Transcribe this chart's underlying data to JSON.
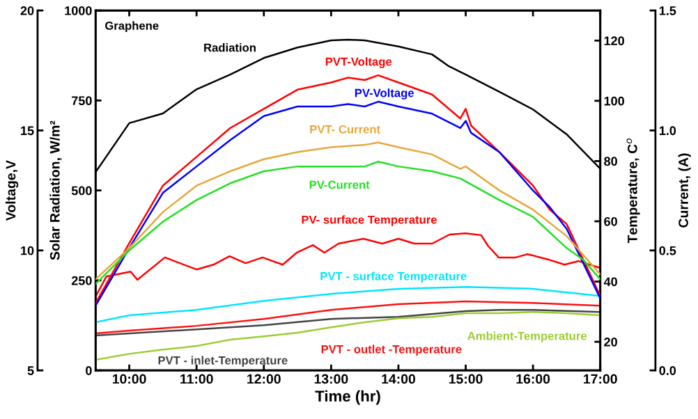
{
  "chart_data": [
    {
      "type": "line",
      "xlabel": "Time (hr)",
      "ylabel": "Solar Radiation, W/m²",
      "y2label": "Temperature, C$^{o}$",
      "annotations": [
        "Graphene"
      ],
      "xlim": [
        9.5,
        17
      ],
      "xticks": [
        {
          "value": 10,
          "label": "10:00"
        },
        {
          "value": 11,
          "label": "11:00"
        },
        {
          "value": 12,
          "label": "12:00"
        },
        {
          "value": 13,
          "label": "13:00"
        },
        {
          "value": 14,
          "label": "14:00"
        },
        {
          "value": 15,
          "label": "15:00"
        },
        {
          "value": 16,
          "label": "16:00"
        },
        {
          "value": 17,
          "label": "17:00"
        }
      ],
      "ylim": [
        0,
        1000
      ],
      "yticks": [
        0,
        250,
        500,
        750,
        1000
      ],
      "y2lim": [
        10.5,
        130
      ],
      "y2ticks": [
        20,
        40,
        60,
        80,
        100,
        120
      ],
      "line_style": "solid",
      "marker": "none",
      "series": [
        {
          "name": "Radiation",
          "color": "#000000",
          "x": [
            9.5,
            10.0,
            10.5,
            11.0,
            11.5,
            12.0,
            12.5,
            13.0,
            13.25,
            13.5,
            14.0,
            14.5,
            14.75,
            15.0,
            15.5,
            16.0,
            16.5,
            17.0
          ],
          "values": [
            551,
            687,
            714,
            781,
            822,
            868,
            897,
            917,
            919,
            917,
            900,
            878,
            845,
            822,
            774,
            725,
            656,
            560
          ]
        },
        {
          "name": "PV- surface Temperature",
          "color": "#ff0000",
          "axis": "y2",
          "x": [
            9.5,
            9.66,
            10.02,
            10.12,
            10.53,
            11.0,
            11.25,
            11.49,
            11.73,
            11.98,
            12.28,
            12.49,
            12.73,
            12.9,
            13.11,
            13.48,
            13.76,
            14.0,
            14.24,
            14.5,
            14.76,
            15.0,
            15.23,
            15.33,
            15.49,
            15.74,
            15.92,
            16.23,
            16.47,
            16.68,
            17.0
          ],
          "values": [
            35.0,
            41.7,
            43.3,
            40.6,
            48.0,
            44.0,
            45.6,
            48.4,
            46.1,
            48.0,
            45.6,
            49.6,
            52.1,
            49.6,
            52.6,
            54.2,
            52.6,
            54.2,
            52.6,
            52.6,
            55.6,
            56.0,
            55.4,
            51.9,
            48.0,
            48.0,
            49.1,
            47.3,
            45.6,
            46.8,
            44.5
          ]
        },
        {
          "name": "PVT - surface Temperature",
          "color": "#00e5ff",
          "axis": "y2",
          "x": [
            9.5,
            10.0,
            11.0,
            12.0,
            13.0,
            14.0,
            15.0,
            16.0,
            17.0
          ],
          "values": [
            26.5,
            28.8,
            30.6,
            33.6,
            35.9,
            37.6,
            38.2,
            37.6,
            35.2
          ]
        },
        {
          "name": "PVT - outlet -Temperature",
          "color": "#ff1010",
          "axis": "y2",
          "x": [
            9.5,
            10.0,
            11.0,
            12.0,
            13.0,
            14.0,
            15.0,
            16.0,
            17.0
          ],
          "values": [
            22.8,
            23.7,
            25.3,
            27.6,
            30.6,
            32.5,
            33.4,
            32.9,
            32.0
          ]
        },
        {
          "name": "PVT - inlet-Temperature",
          "color": "#444444",
          "axis": "y2",
          "x": [
            9.5,
            10.0,
            11.0,
            12.0,
            13.0,
            14.0,
            15.0,
            15.5,
            16.0,
            17.0
          ],
          "values": [
            22.1,
            22.8,
            24.1,
            25.5,
            27.6,
            28.3,
            30.2,
            30.6,
            30.6,
            29.9
          ]
        },
        {
          "name": "Ambient-Temperature",
          "color": "#9acd32",
          "axis": "y2",
          "x": [
            9.5,
            10.0,
            10.5,
            11.0,
            11.5,
            12.0,
            12.5,
            13.0,
            13.5,
            14.0,
            14.5,
            15.0,
            15.5,
            16.0,
            16.5,
            17.0
          ],
          "values": [
            14.0,
            16.0,
            17.4,
            18.6,
            20.7,
            21.8,
            23.0,
            24.8,
            26.5,
            27.8,
            28.3,
            29.5,
            29.5,
            29.9,
            29.5,
            28.8
          ]
        }
      ]
    },
    {
      "type": "line",
      "ylabel": "Voltage,V",
      "y2label": "Current, (A)",
      "tick_labels": "y",
      "xlim": [
        9.5,
        17
      ],
      "ylim": [
        5,
        20
      ],
      "yticks": [
        5,
        10,
        15,
        20
      ],
      "y2lim": [
        0,
        1.5
      ],
      "y2ticks": [
        {
          "value": 0,
          "label": "0.0"
        },
        {
          "value": 0.5,
          "label": "0.5"
        },
        {
          "value": 1,
          "label": "1.0"
        },
        {
          "value": 1.5,
          "label": "1.5"
        }
      ],
      "line_style": "solid",
      "marker": "none",
      "series": [
        {
          "name": "PVT-Voltage",
          "color": "#ff0000",
          "x": [
            9.5,
            10.0,
            10.5,
            11.0,
            11.5,
            12.0,
            12.5,
            13.0,
            13.25,
            13.5,
            13.7,
            14.0,
            14.5,
            14.92,
            15.0,
            15.08,
            15.5,
            16.0,
            16.25,
            16.5,
            16.75,
            17.0
          ],
          "values": [
            7.8,
            10.3,
            12.7,
            13.9,
            15.1,
            15.9,
            16.7,
            17.0,
            17.2,
            17.1,
            17.3,
            17.0,
            16.5,
            15.5,
            15.9,
            15.2,
            14.1,
            12.7,
            11.7,
            11.1,
            9.6,
            8.1
          ]
        },
        {
          "name": "PV-Voltage",
          "color": "#0000ff",
          "x": [
            9.5,
            10.0,
            10.5,
            11.0,
            11.5,
            12.0,
            12.5,
            13.0,
            13.25,
            13.5,
            13.7,
            14.0,
            14.5,
            14.92,
            15.0,
            15.08,
            15.5,
            16.0,
            16.25,
            16.5,
            17.0
          ],
          "values": [
            7.7,
            10.1,
            12.4,
            13.5,
            14.6,
            15.6,
            16.0,
            16.0,
            16.1,
            16.0,
            16.2,
            16.0,
            15.7,
            15.1,
            15.4,
            14.9,
            14.1,
            12.5,
            11.8,
            10.9,
            8.0
          ]
        },
        {
          "name": "PVT- Current",
          "color": "#e6a73a",
          "axis": "y2",
          "x": [
            9.5,
            10.0,
            10.5,
            11.0,
            11.5,
            12.0,
            12.5,
            13.0,
            13.5,
            13.7,
            14.0,
            14.5,
            14.92,
            15.0,
            15.5,
            16.0,
            16.5,
            16.75,
            17.0
          ],
          "values": [
            0.38,
            0.51,
            0.66,
            0.77,
            0.83,
            0.88,
            0.91,
            0.93,
            0.94,
            0.95,
            0.93,
            0.9,
            0.84,
            0.85,
            0.75,
            0.67,
            0.56,
            0.48,
            0.4
          ]
        },
        {
          "name": "PV-Current",
          "color": "#22e022",
          "axis": "y2",
          "x": [
            9.5,
            10.0,
            10.5,
            11.0,
            11.5,
            12.0,
            12.5,
            13.0,
            13.5,
            13.7,
            14.0,
            14.5,
            14.92,
            15.5,
            16.0,
            16.5,
            16.75,
            17.0
          ],
          "values": [
            0.36,
            0.5,
            0.62,
            0.71,
            0.78,
            0.83,
            0.85,
            0.85,
            0.85,
            0.87,
            0.85,
            0.83,
            0.8,
            0.71,
            0.64,
            0.51,
            0.46,
            0.38
          ]
        }
      ]
    }
  ]
}
